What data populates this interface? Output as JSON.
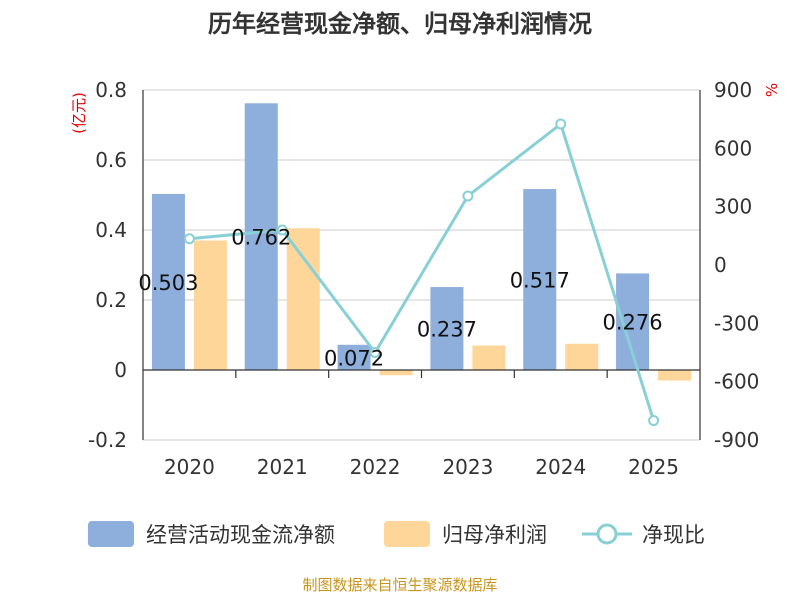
{
  "chart_data": {
    "type": "bar",
    "title": "历年经营现金净额、归母净利润情况",
    "categories": [
      "2020",
      "2021",
      "2022",
      "2023",
      "2024",
      "2025"
    ],
    "series": [
      {
        "name": "经营活动现金流净额",
        "type": "bar",
        "axis": "left",
        "values": [
          0.503,
          0.762,
          0.072,
          0.237,
          0.517,
          0.276
        ],
        "data_labels": [
          "0.503",
          "0.762",
          "0.072",
          "0.237",
          "0.517",
          "0.276"
        ]
      },
      {
        "name": "归母净利润",
        "type": "bar",
        "axis": "left",
        "values": [
          0.37,
          0.405,
          -0.015,
          0.07,
          0.075,
          -0.03
        ]
      },
      {
        "name": "净现比",
        "type": "line",
        "axis": "right",
        "values": [
          135,
          180,
          -450,
          355,
          725,
          -800
        ]
      }
    ],
    "y_left": {
      "unit": "(亿元)",
      "min": -0.2,
      "max": 0.8,
      "ticks": [
        0.8,
        0.6,
        0.4,
        0.2,
        0,
        -0.2
      ],
      "tick_labels": [
        "0.8",
        "0.6",
        "0.4",
        "0.2",
        "0",
        "-0.2"
      ]
    },
    "y_right": {
      "unit": "%",
      "min": -900,
      "max": 900,
      "ticks": [
        900,
        600,
        300,
        0,
        -300,
        -600,
        -900
      ],
      "tick_labels": [
        "900",
        "600",
        "300",
        "0",
        "-300",
        "-600",
        "-900"
      ]
    },
    "grid": true,
    "legend_position": "bottom",
    "source": "制图数据来自恒生聚源数据库"
  },
  "colors": {
    "bar1": "#8eaedb",
    "bar2": "#ffd699",
    "line": "#88d0d6",
    "grid": "#cccccc",
    "axis": "#333333"
  }
}
